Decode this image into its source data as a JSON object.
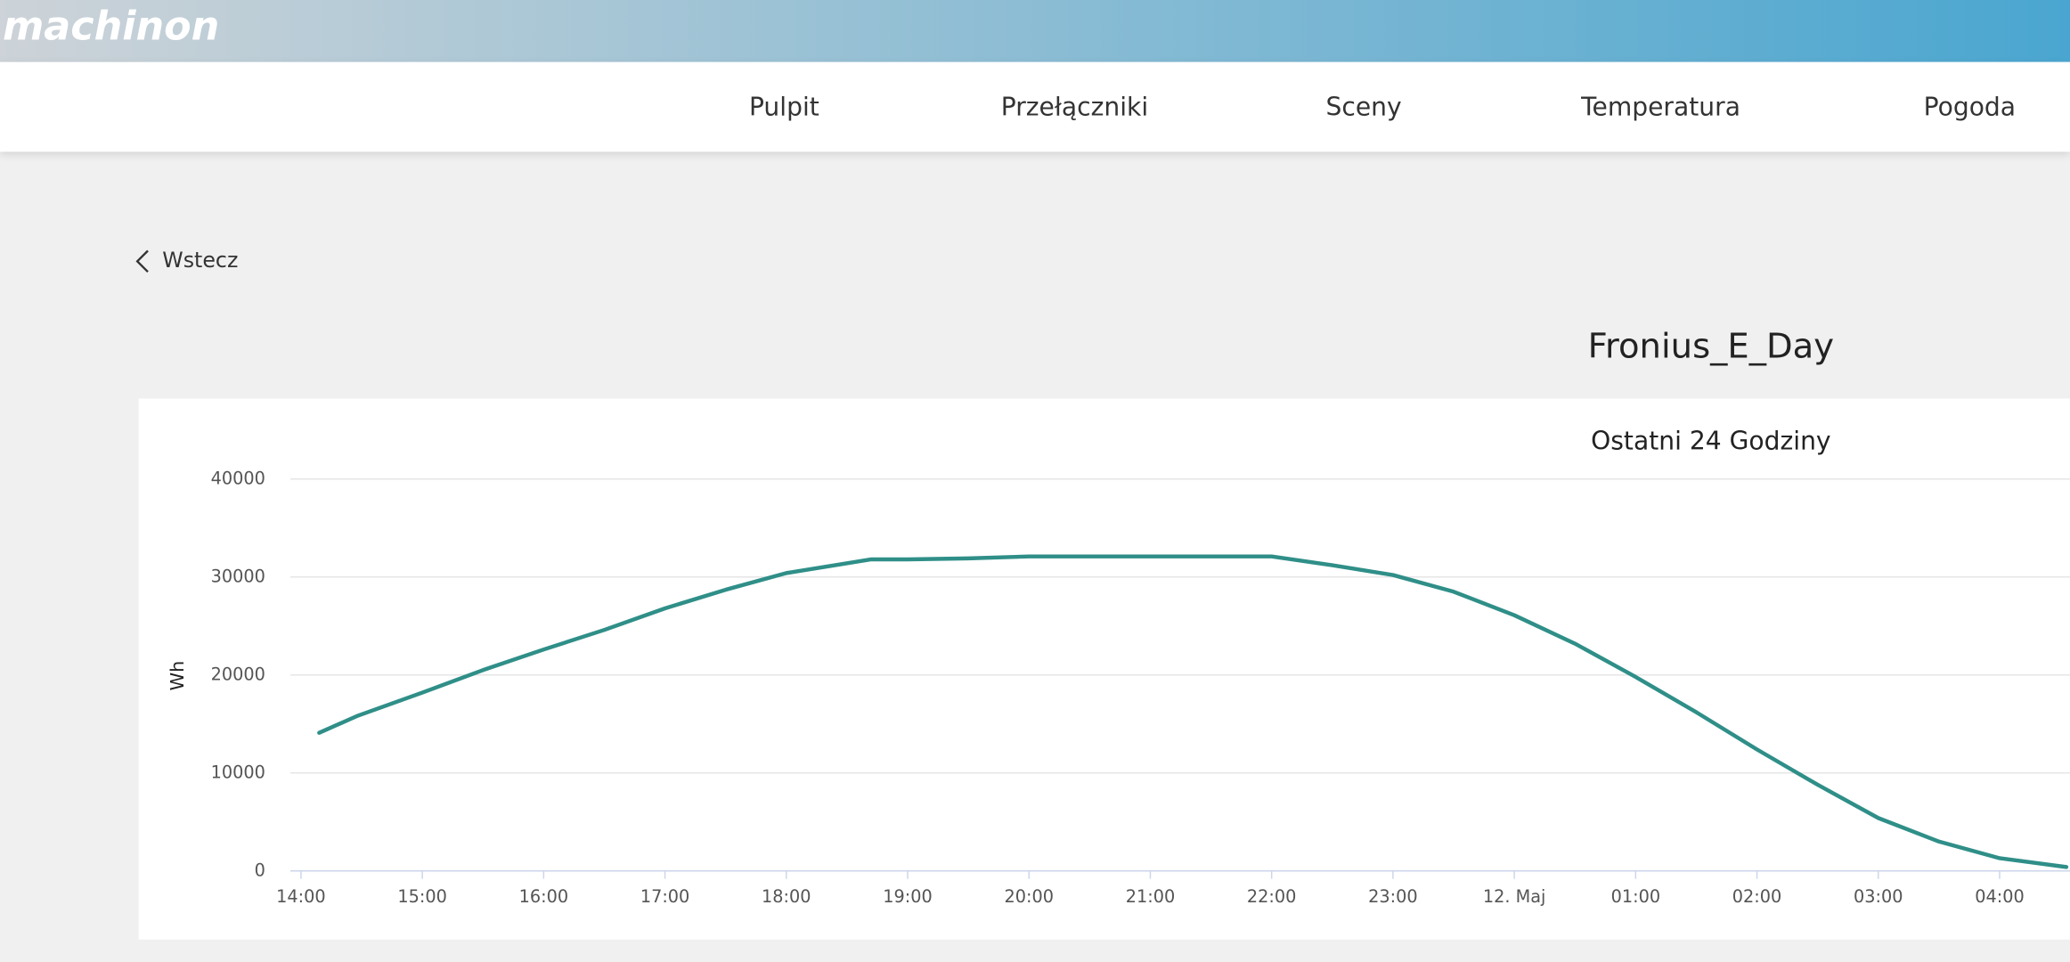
{
  "header": {
    "logo": "machinon"
  },
  "nav": [
    "Pulpit",
    "Przełączniki",
    "Sceny",
    "Temperatura",
    "Pogoda"
  ],
  "back": "Wstecz",
  "page_title": "Fronius_E_Day",
  "chart_data": {
    "type": "line",
    "subtitle": "Ostatni 24 Godziny",
    "y_label": "Wh",
    "x": [
      14.15,
      14.46,
      15.0,
      15.5,
      16.0,
      16.5,
      17.0,
      17.5,
      18.0,
      18.7,
      19.0,
      19.5,
      20.0,
      21.0,
      22.0,
      22.5,
      23.0,
      23.5,
      24.0,
      24.5,
      25.0,
      25.5,
      26.0,
      26.5,
      27.0,
      27.5,
      28.0,
      28.55
    ],
    "values": [
      14100,
      15800,
      18200,
      20500,
      22600,
      24600,
      26800,
      28700,
      30400,
      31800,
      31800,
      31900,
      32100,
      32100,
      32100,
      31200,
      30200,
      28500,
      26100,
      23200,
      19800,
      16200,
      12400,
      8800,
      5400,
      3000,
      1300,
      400
    ],
    "color": "#2f8f88",
    "xlim": [
      13.913,
      28.58
    ],
    "ylim": [
      0,
      40000
    ],
    "xticks": [
      {
        "value": 14,
        "label": "14:00"
      },
      {
        "value": 15,
        "label": "15:00"
      },
      {
        "value": 16,
        "label": "16:00"
      },
      {
        "value": 17,
        "label": "17:00"
      },
      {
        "value": 18,
        "label": "18:00"
      },
      {
        "value": 19,
        "label": "19:00"
      },
      {
        "value": 20,
        "label": "20:00"
      },
      {
        "value": 21,
        "label": "21:00"
      },
      {
        "value": 22,
        "label": "22:00"
      },
      {
        "value": 23,
        "label": "23:00"
      },
      {
        "value": 24,
        "label": "12. Maj"
      },
      {
        "value": 25,
        "label": "01:00"
      },
      {
        "value": 26,
        "label": "02:00"
      },
      {
        "value": 27,
        "label": "03:00"
      },
      {
        "value": 28,
        "label": "04:00"
      }
    ],
    "yticks": [
      0,
      10000,
      20000,
      30000,
      40000
    ],
    "grid": true
  }
}
